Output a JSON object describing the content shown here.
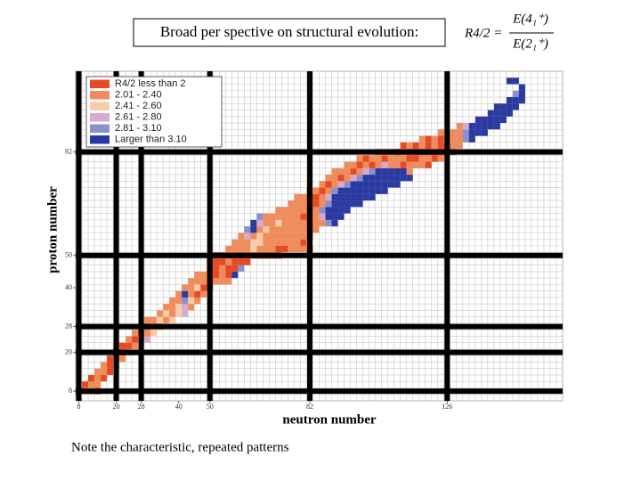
{
  "title": "Broad per spective on structural evolution:",
  "formula": {
    "lhs": "R4/2 =",
    "numerator": "E(4₁⁺)",
    "denominator": "E(2₁⁺)"
  },
  "note": "Note the characteristic, repeated patterns",
  "chart_data": {
    "type": "heatmap",
    "x_label": "neutron number",
    "y_label": "proton number",
    "xlim": [
      7,
      163
    ],
    "ylim": [
      5,
      107
    ],
    "xticks": [
      8,
      20,
      28,
      40,
      50,
      82,
      126
    ],
    "yticks": [
      8,
      20,
      28,
      40,
      50,
      82
    ],
    "magic_numbers": [
      8,
      20,
      28,
      50,
      82,
      126
    ],
    "grid": true,
    "legend_position": "upper left",
    "legend": [
      {
        "name": "R4/2 less than 2",
        "color": "#e64a25"
      },
      {
        "name": "2.01 - 2.40",
        "color": "#f08c5c"
      },
      {
        "name": "2.41 - 2.60",
        "color": "#f8cbab"
      },
      {
        "name": "2.61 - 2.80",
        "color": "#d8a9cf"
      },
      {
        "name": "2.81 - 3.10",
        "color": "#8a90cc"
      },
      {
        "name": "Larger than 3.10",
        "color": "#2a3aa0"
      }
    ],
    "rows": [
      {
        "z": 8,
        "n": [
          8,
          10,
          12,
          14
        ],
        "bin": [
          0,
          1,
          1,
          0
        ]
      },
      {
        "z": 10,
        "n": [
          10,
          12,
          14
        ],
        "bin": [
          0,
          1,
          1
        ]
      },
      {
        "z": 12,
        "n": [
          12,
          14,
          16
        ],
        "bin": [
          0,
          1,
          0
        ]
      },
      {
        "z": 14,
        "n": [
          14,
          16,
          18
        ],
        "bin": [
          1,
          1,
          0
        ]
      },
      {
        "z": 16,
        "n": [
          16,
          18,
          20
        ],
        "bin": [
          1,
          0,
          1
        ]
      },
      {
        "z": 18,
        "n": [
          18,
          20,
          22
        ],
        "bin": [
          0,
          1,
          1
        ]
      },
      {
        "z": 20,
        "n": [
          20,
          22,
          24,
          26
        ],
        "bin": [
          0,
          0,
          1,
          2
        ]
      },
      {
        "z": 22,
        "n": [
          20,
          22,
          24,
          26,
          28
        ],
        "bin": [
          1,
          0,
          0,
          1,
          2
        ]
      },
      {
        "z": 24,
        "n": [
          24,
          26,
          28,
          30
        ],
        "bin": [
          1,
          0,
          1,
          3
        ]
      },
      {
        "z": 26,
        "n": [
          26,
          28,
          30,
          32
        ],
        "bin": [
          1,
          0,
          1,
          2
        ]
      },
      {
        "z": 28,
        "n": [
          28,
          30,
          32,
          34,
          36
        ],
        "bin": [
          0,
          0,
          1,
          1,
          2
        ]
      },
      {
        "z": 30,
        "n": [
          30,
          32,
          34,
          36,
          38
        ],
        "bin": [
          1,
          1,
          2,
          1,
          2
        ]
      },
      {
        "z": 32,
        "n": [
          34,
          36,
          38,
          40,
          42
        ],
        "bin": [
          1,
          2,
          1,
          2,
          3
        ]
      },
      {
        "z": 34,
        "n": [
          36,
          38,
          40,
          42,
          44
        ],
        "bin": [
          1,
          1,
          2,
          3,
          1
        ]
      },
      {
        "z": 36,
        "n": [
          38,
          40,
          42,
          44,
          46
        ],
        "bin": [
          1,
          1,
          4,
          2,
          1
        ]
      },
      {
        "z": 38,
        "n": [
          40,
          42,
          44,
          46,
          48
        ],
        "bin": [
          1,
          5,
          1,
          0,
          1
        ]
      },
      {
        "z": 40,
        "n": [
          42,
          44,
          46,
          48,
          50
        ],
        "bin": [
          1,
          1,
          2,
          0,
          0
        ]
      },
      {
        "z": 42,
        "n": [
          44,
          46,
          48,
          50,
          52,
          54,
          56
        ],
        "bin": [
          1,
          1,
          1,
          0,
          1,
          1,
          1
        ]
      },
      {
        "z": 44,
        "n": [
          46,
          48,
          50,
          52,
          54,
          56,
          58
        ],
        "bin": [
          1,
          1,
          0,
          0,
          1,
          0,
          5
        ]
      },
      {
        "z": 46,
        "n": [
          50,
          52,
          54,
          56,
          58,
          60
        ],
        "bin": [
          0,
          0,
          1,
          0,
          0,
          4
        ]
      },
      {
        "z": 48,
        "n": [
          50,
          52,
          54,
          56,
          58,
          60,
          62
        ],
        "bin": [
          0,
          0,
          0,
          1,
          0,
          0,
          0
        ]
      },
      {
        "z": 50,
        "n": [
          52,
          54,
          56,
          58,
          60,
          62,
          64,
          66,
          68,
          70,
          72
        ],
        "bin": [
          0,
          0,
          0,
          0,
          0,
          0,
          0,
          0,
          0,
          0,
          0
        ]
      },
      {
        "z": 52,
        "n": [
          56,
          58,
          60,
          62,
          64,
          66,
          68,
          70,
          72,
          74,
          76,
          78,
          80,
          82
        ],
        "bin": [
          1,
          1,
          1,
          1,
          2,
          1,
          1,
          1,
          0,
          0,
          1,
          1,
          1,
          0
        ]
      },
      {
        "z": 54,
        "n": [
          58,
          60,
          62,
          64,
          66,
          68,
          70,
          72,
          74,
          76,
          78,
          80
        ],
        "bin": [
          1,
          1,
          1,
          2,
          2,
          1,
          1,
          1,
          1,
          1,
          1,
          0
        ]
      },
      {
        "z": 56,
        "n": [
          60,
          62,
          64,
          66,
          68,
          70,
          72,
          74,
          76,
          78,
          80,
          82
        ],
        "bin": [
          1,
          3,
          1,
          2,
          1,
          1,
          1,
          1,
          1,
          1,
          1,
          0
        ]
      },
      {
        "z": 58,
        "n": [
          62,
          64,
          66,
          68,
          70,
          72,
          74,
          76,
          78,
          80,
          82,
          84
        ],
        "bin": [
          4,
          5,
          1,
          2,
          1,
          1,
          1,
          1,
          1,
          1,
          0,
          1
        ]
      },
      {
        "z": 60,
        "n": [
          64,
          66,
          68,
          70,
          72,
          74,
          76,
          78,
          80,
          82,
          84,
          86,
          88,
          90
        ],
        "bin": [
          5,
          3,
          1,
          1,
          2,
          1,
          1,
          1,
          1,
          0,
          1,
          1,
          4,
          5
        ]
      },
      {
        "z": 62,
        "n": [
          66,
          68,
          70,
          72,
          74,
          76,
          78,
          80,
          82,
          84,
          86,
          88,
          90,
          92
        ],
        "bin": [
          4,
          1,
          1,
          1,
          1,
          1,
          1,
          0,
          0,
          1,
          3,
          5,
          5,
          5
        ]
      },
      {
        "z": 64,
        "n": [
          72,
          74,
          76,
          78,
          80,
          82,
          84,
          86,
          88,
          90,
          92,
          94
        ],
        "bin": [
          1,
          1,
          1,
          1,
          1,
          0,
          1,
          4,
          5,
          5,
          5,
          5
        ]
      },
      {
        "z": 66,
        "n": [
          76,
          78,
          80,
          82,
          84,
          86,
          88,
          90,
          92,
          94,
          96,
          98
        ],
        "bin": [
          1,
          1,
          1,
          0,
          0,
          1,
          4,
          5,
          5,
          5,
          5,
          5
        ]
      },
      {
        "z": 68,
        "n": [
          78,
          80,
          82,
          84,
          86,
          88,
          90,
          92,
          94,
          96,
          98,
          100,
          102
        ],
        "bin": [
          1,
          1,
          0,
          0,
          1,
          3,
          5,
          5,
          5,
          5,
          5,
          5,
          5
        ]
      },
      {
        "z": 70,
        "n": [
          82,
          84,
          86,
          88,
          90,
          92,
          94,
          96,
          98,
          100,
          102,
          104,
          106
        ],
        "bin": [
          1,
          1,
          0,
          1,
          4,
          5,
          5,
          5,
          5,
          5,
          5,
          5,
          5
        ]
      },
      {
        "z": 72,
        "n": [
          86,
          88,
          90,
          92,
          94,
          96,
          98,
          100,
          102,
          104,
          106,
          108,
          110
        ],
        "bin": [
          1,
          0,
          1,
          3,
          4,
          5,
          5,
          5,
          5,
          5,
          5,
          5,
          5
        ]
      },
      {
        "z": 74,
        "n": [
          88,
          90,
          92,
          94,
          96,
          98,
          100,
          102,
          104,
          106,
          108,
          110,
          112,
          114
        ],
        "bin": [
          1,
          1,
          0,
          1,
          3,
          4,
          5,
          5,
          5,
          5,
          5,
          5,
          5,
          5
        ]
      },
      {
        "z": 76,
        "n": [
          90,
          92,
          94,
          96,
          98,
          100,
          102,
          104,
          106,
          108,
          110,
          112,
          114
        ],
        "bin": [
          1,
          1,
          1,
          0,
          1,
          3,
          4,
          5,
          5,
          5,
          5,
          5,
          1
        ]
      },
      {
        "z": 78,
        "n": [
          94,
          96,
          98,
          100,
          102,
          104,
          106,
          108,
          110,
          112,
          114,
          116,
          118,
          120
        ],
        "bin": [
          1,
          1,
          0,
          1,
          0,
          1,
          3,
          1,
          1,
          0,
          1,
          1,
          1,
          0
        ]
      },
      {
        "z": 80,
        "n": [
          98,
          100,
          102,
          104,
          106,
          108,
          110,
          112,
          114,
          116,
          118,
          120,
          122,
          124
        ],
        "bin": [
          1,
          0,
          1,
          1,
          0,
          1,
          1,
          1,
          0,
          0,
          1,
          1,
          0,
          1
        ]
      },
      {
        "z": 82,
        "n": [
          104,
          106,
          108,
          110,
          112,
          114,
          116,
          118,
          120,
          122,
          124,
          126,
          128
        ],
        "bin": [
          1,
          1,
          1,
          0,
          1,
          0,
          0,
          0,
          0,
          0,
          0,
          0,
          1
        ]
      },
      {
        "z": 84,
        "n": [
          112,
          114,
          116,
          118,
          120,
          122,
          124,
          126,
          128,
          130
        ],
        "bin": [
          0,
          1,
          0,
          1,
          0,
          1,
          0,
          0,
          1,
          1
        ]
      },
      {
        "z": 86,
        "n": [
          118,
          120,
          122,
          124,
          126,
          128,
          130,
          132,
          134
        ],
        "bin": [
          1,
          0,
          1,
          0,
          1,
          1,
          1,
          4,
          5
        ]
      },
      {
        "z": 88,
        "n": [
          124,
          126,
          128,
          130,
          132,
          134,
          136,
          138
        ],
        "bin": [
          1,
          1,
          1,
          1,
          4,
          5,
          5,
          5
        ]
      },
      {
        "z": 90,
        "n": [
          130,
          132,
          134,
          136,
          138,
          140,
          142
        ],
        "bin": [
          1,
          3,
          5,
          5,
          5,
          5,
          5
        ]
      },
      {
        "z": 92,
        "n": [
          136,
          138,
          140,
          142,
          144
        ],
        "bin": [
          5,
          5,
          5,
          5,
          5
        ]
      },
      {
        "z": 94,
        "n": [
          140,
          142,
          144,
          146
        ],
        "bin": [
          5,
          5,
          5,
          5
        ]
      },
      {
        "z": 96,
        "n": [
          142,
          144,
          146,
          148
        ],
        "bin": [
          5,
          5,
          5,
          5
        ]
      },
      {
        "z": 98,
        "n": [
          146,
          148,
          150
        ],
        "bin": [
          5,
          5,
          5
        ]
      },
      {
        "z": 100,
        "n": [
          148,
          150
        ],
        "bin": [
          4,
          5
        ]
      },
      {
        "z": 102,
        "n": [
          150
        ],
        "bin": [
          5
        ]
      },
      {
        "z": 104,
        "n": [
          146,
          148
        ],
        "bin": [
          5,
          5
        ]
      }
    ]
  }
}
